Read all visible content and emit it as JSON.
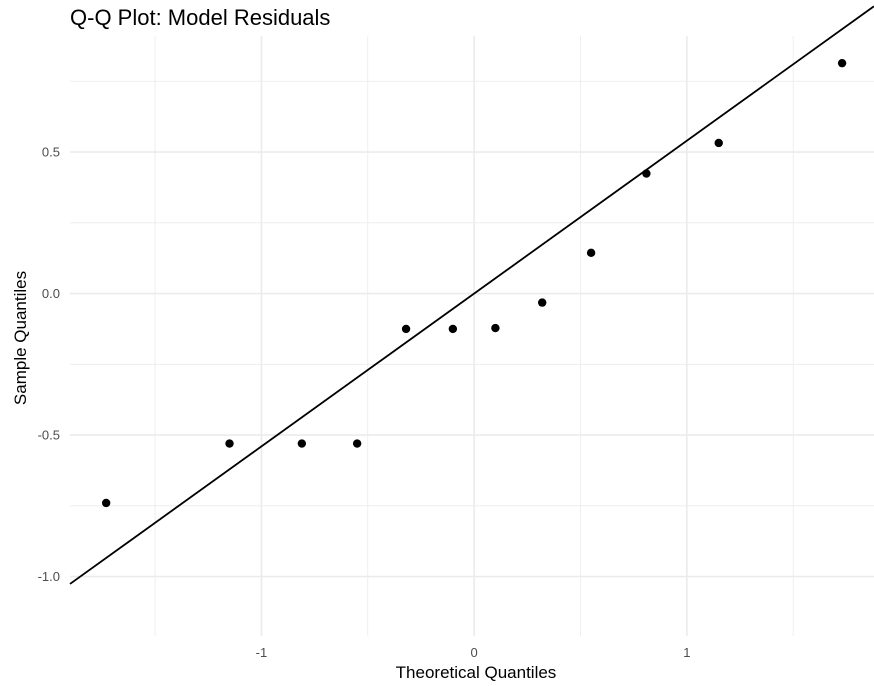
{
  "chart_data": {
    "type": "scatter",
    "title": "Q-Q Plot: Model Residuals",
    "xlabel": "Theoretical Quantiles",
    "ylabel": "Sample Quantiles",
    "xlim": [
      -1.9,
      1.88
    ],
    "ylim": [
      -1.21,
      0.91
    ],
    "x_ticks": [
      -1,
      0,
      1
    ],
    "x_tick_labels": [
      "-1",
      "0",
      "1"
    ],
    "y_ticks": [
      -1.0,
      -0.5,
      0.0,
      0.5
    ],
    "y_tick_labels": [
      "-1.0",
      "-0.5",
      "0.0",
      "0.5"
    ],
    "x_minor_grid": [
      -1.5,
      -0.5,
      0.5,
      1.5
    ],
    "y_minor_grid": [
      -0.75,
      -0.25,
      0.25,
      0.75
    ],
    "grid": true,
    "points": {
      "x": [
        -1.73,
        -1.15,
        -0.81,
        -0.55,
        -0.32,
        -0.1,
        0.1,
        0.32,
        0.55,
        0.81,
        1.15,
        1.73
      ],
      "y": [
        -0.74,
        -0.53,
        -0.53,
        -0.53,
        -0.125,
        -0.125,
        -0.122,
        -0.032,
        0.144,
        0.424,
        0.532,
        0.814
      ]
    },
    "reference_line": {
      "intercept": 0.0,
      "slope": 0.54
    },
    "colors": {
      "points": "#000000",
      "line": "#000000",
      "grid": "#ebebeb",
      "tick_text": "#4d4d4d"
    }
  }
}
